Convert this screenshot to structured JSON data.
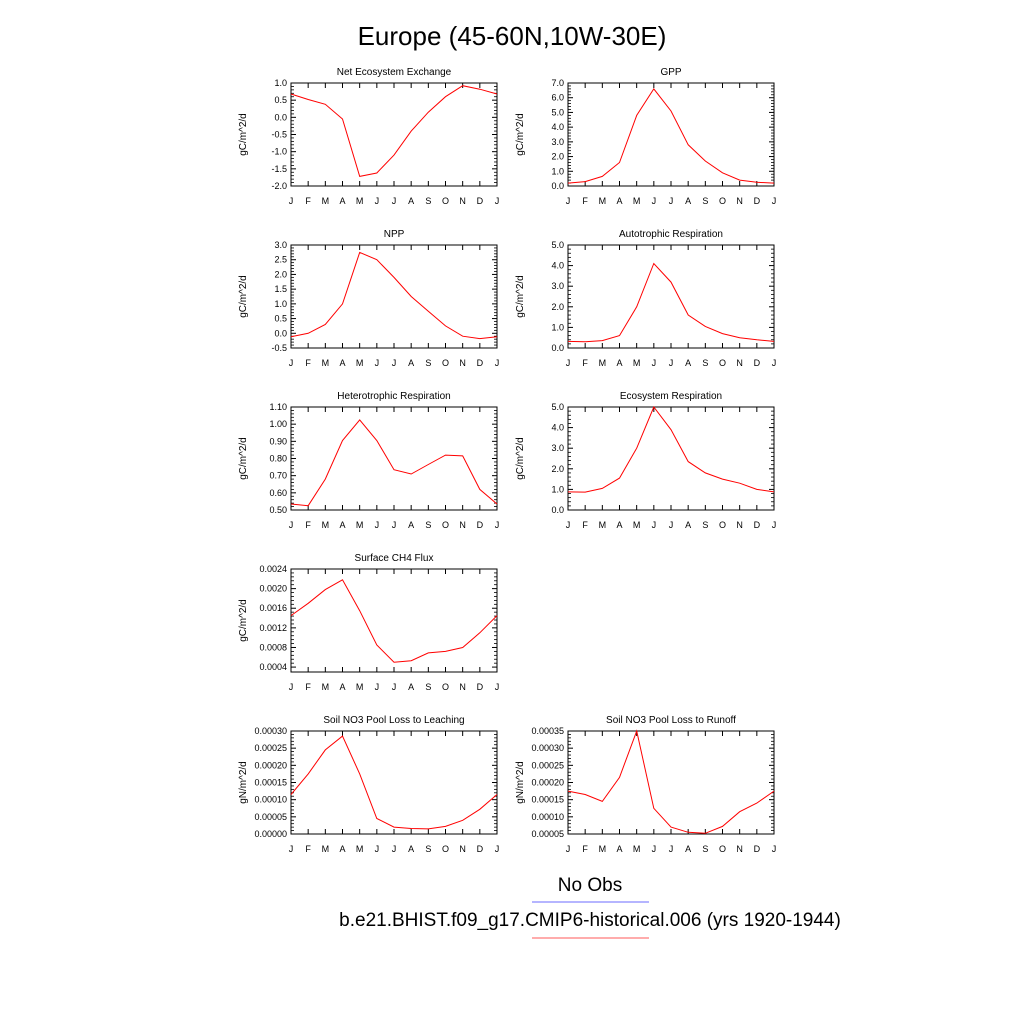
{
  "title": "Europe (45-60N,10W-30E)",
  "legend": [
    {
      "label": "No Obs",
      "color": "#6b6bff"
    },
    {
      "label": "b.e21.BHIST.f09_g17.CMIP6-historical.006 (yrs 1920-1944)",
      "color": "#ff5a5a"
    }
  ],
  "months": [
    "J",
    "F",
    "M",
    "A",
    "M",
    "J",
    "J",
    "A",
    "S",
    "O",
    "N",
    "D",
    "J"
  ],
  "chart_data": [
    {
      "type": "line",
      "title": "Net Ecosystem Exchange",
      "ylabel": "gC/m^2/d",
      "yticks": [
        "1.0",
        "0.5",
        "0.0",
        "-0.5",
        "-1.0",
        "-1.5",
        "-2.0"
      ],
      "ylim": [
        -2.0,
        1.0
      ],
      "series": [
        {
          "color": "#ff0000",
          "values": [
            0.68,
            0.52,
            0.38,
            -0.05,
            -1.72,
            -1.62,
            -1.1,
            -0.4,
            0.15,
            0.6,
            0.92,
            0.82,
            0.68
          ]
        }
      ]
    },
    {
      "type": "line",
      "title": "GPP",
      "ylabel": "gC/m^2/d",
      "yticks": [
        "7.0",
        "6.0",
        "5.0",
        "4.0",
        "3.0",
        "2.0",
        "1.0",
        "0.0"
      ],
      "ylim": [
        0,
        7
      ],
      "series": [
        {
          "color": "#ff0000",
          "values": [
            0.2,
            0.3,
            0.65,
            1.6,
            4.8,
            6.6,
            5.1,
            2.8,
            1.7,
            0.9,
            0.4,
            0.25,
            0.2
          ]
        }
      ]
    },
    {
      "type": "line",
      "title": "NPP",
      "ylabel": "gC/m^2/d",
      "yticks": [
        "3.0",
        "2.5",
        "2.0",
        "1.5",
        "1.0",
        "0.5",
        "0.0",
        "-0.5"
      ],
      "ylim": [
        -0.5,
        3.0
      ],
      "series": [
        {
          "color": "#ff0000",
          "values": [
            -0.12,
            0.0,
            0.3,
            1.0,
            2.75,
            2.5,
            1.9,
            1.25,
            0.75,
            0.25,
            -0.1,
            -0.18,
            -0.12
          ]
        }
      ]
    },
    {
      "type": "line",
      "title": "Autotrophic Respiration",
      "ylabel": "gC/m^2/d",
      "yticks": [
        "5.0",
        "4.0",
        "3.0",
        "2.0",
        "1.0",
        "0.0"
      ],
      "ylim": [
        0,
        5
      ],
      "series": [
        {
          "color": "#ff0000",
          "values": [
            0.32,
            0.3,
            0.36,
            0.6,
            2.0,
            4.1,
            3.2,
            1.6,
            1.05,
            0.7,
            0.5,
            0.4,
            0.32
          ]
        }
      ]
    },
    {
      "type": "line",
      "title": "Heterotrophic Respiration",
      "ylabel": "gC/m^2/d",
      "yticks": [
        "1.10",
        "1.00",
        "0.90",
        "0.80",
        "0.70",
        "0.60",
        "0.50"
      ],
      "ylim": [
        0.5,
        1.1
      ],
      "series": [
        {
          "color": "#ff0000",
          "values": [
            0.535,
            0.525,
            0.68,
            0.905,
            1.025,
            0.905,
            0.735,
            0.71,
            0.765,
            0.82,
            0.815,
            0.62,
            0.535
          ]
        }
      ]
    },
    {
      "type": "line",
      "title": "Ecosystem Respiration",
      "ylabel": "gC/m^2/d",
      "yticks": [
        "5.0",
        "4.0",
        "3.0",
        "2.0",
        "1.0",
        "0.0"
      ],
      "ylim": [
        0,
        5
      ],
      "series": [
        {
          "color": "#ff0000",
          "values": [
            0.88,
            0.87,
            1.05,
            1.55,
            3.0,
            5.0,
            3.9,
            2.35,
            1.8,
            1.5,
            1.3,
            1.0,
            0.88
          ]
        }
      ]
    },
    {
      "type": "line",
      "title": "Surface CH4 Flux",
      "ylabel": "gC/m^2/d",
      "yticks": [
        "0.0024",
        "0.0020",
        "0.0016",
        "0.0012",
        "0.0008",
        "0.0004"
      ],
      "ylim": [
        0.0003,
        0.0024
      ],
      "series": [
        {
          "color": "#ff0000",
          "values": [
            0.00145,
            0.0017,
            0.00198,
            0.00218,
            0.00155,
            0.00085,
            0.0005,
            0.00053,
            0.00069,
            0.00072,
            0.0008,
            0.0011,
            0.00145
          ]
        }
      ]
    },
    {
      "type": "line",
      "title": "Soil NO3 Pool Loss to Leaching",
      "ylabel": "gN/m^2/d",
      "yticks": [
        "0.00030",
        "0.00025",
        "0.00020",
        "0.00015",
        "0.00010",
        "0.00005",
        "0.00000"
      ],
      "ylim": [
        0,
        0.0003
      ],
      "series": [
        {
          "color": "#ff0000",
          "values": [
            0.000115,
            0.000175,
            0.000245,
            0.000285,
            0.000175,
            4.5e-05,
            2e-05,
            1.6e-05,
            1.5e-05,
            2.2e-05,
            4e-05,
            7.2e-05,
            0.000115
          ]
        }
      ]
    },
    {
      "type": "line",
      "title": "Soil NO3 Pool Loss to Runoff",
      "ylabel": "gN/m^2/d",
      "yticks": [
        "0.00035",
        "0.00030",
        "0.00025",
        "0.00020",
        "0.00015",
        "0.00010",
        "0.00005"
      ],
      "ylim": [
        5e-05,
        0.00035
      ],
      "series": [
        {
          "color": "#ff0000",
          "values": [
            0.000175,
            0.000165,
            0.000145,
            0.000215,
            0.00035,
            0.000125,
            7e-05,
            5.5e-05,
            5.2e-05,
            7.2e-05,
            0.000115,
            0.00014,
            0.000175
          ]
        }
      ]
    }
  ]
}
